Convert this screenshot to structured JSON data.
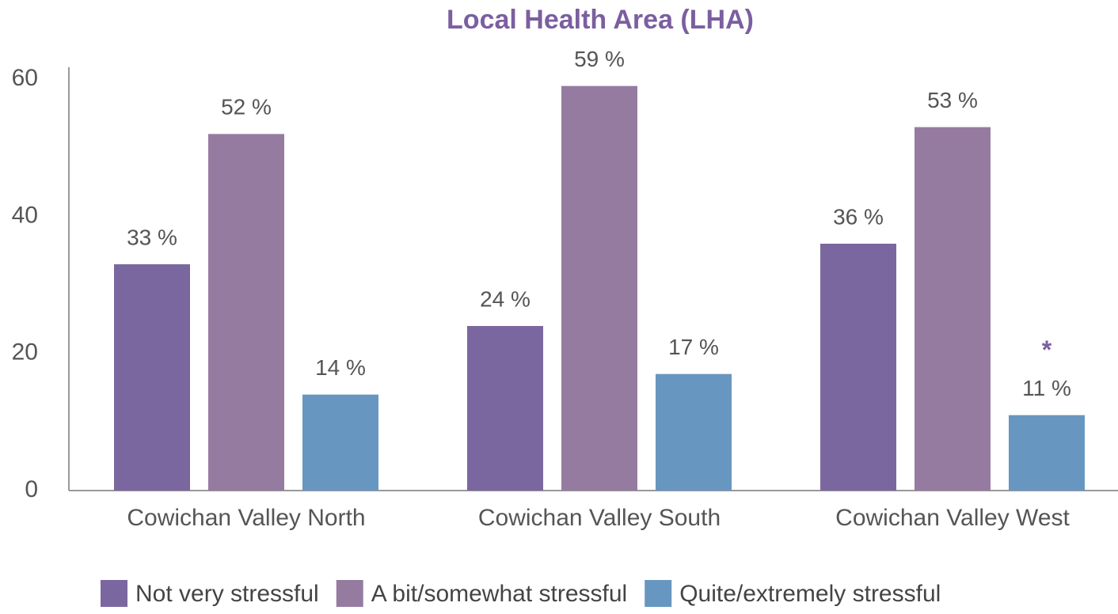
{
  "chart_data": {
    "type": "bar",
    "title": "Local Health Area (LHA)",
    "categories": [
      "Cowichan Valley North",
      "Cowichan Valley South",
      "Cowichan Valley West"
    ],
    "series": [
      {
        "name": "Not very stressful",
        "color": "#7b67a0",
        "values": [
          33,
          24,
          36
        ],
        "value_labels": [
          "33 %",
          "24 %",
          "36 %"
        ]
      },
      {
        "name": "A bit/somewhat stressful",
        "color": "#967ba1",
        "values": [
          52,
          59,
          53
        ],
        "value_labels": [
          "52 %",
          "59 %",
          "53 %"
        ]
      },
      {
        "name": "Quite/extremely stressful",
        "color": "#6797c0",
        "values": [
          14,
          17,
          11
        ],
        "value_labels": [
          "14 %",
          "17 %",
          "11 %"
        ]
      }
    ],
    "annotation": "*",
    "ylim": [
      0,
      60
    ],
    "yticks": [
      0,
      20,
      40,
      60
    ],
    "grid": false,
    "legend": "bottom"
  }
}
